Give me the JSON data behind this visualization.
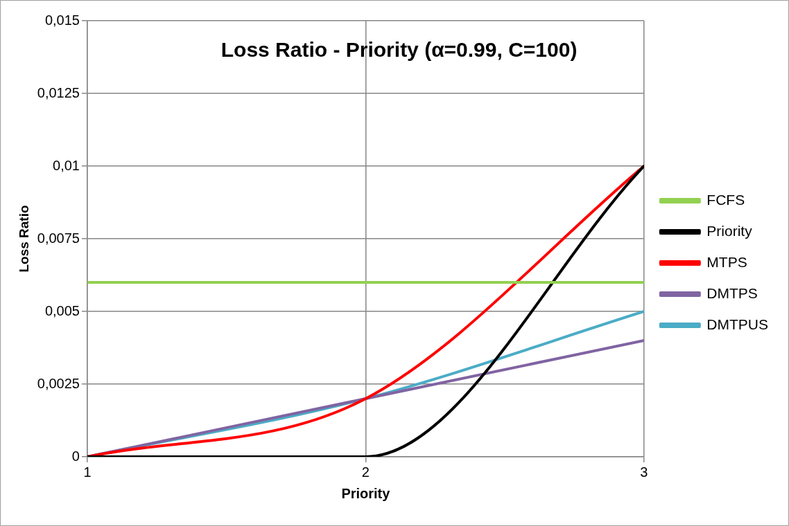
{
  "chart_data": {
    "type": "line",
    "title": "Loss Ratio - Priority (α=0.99, C=100)",
    "xlabel": "Priority",
    "ylabel": "Loss Ratio",
    "x": [
      1,
      2,
      3
    ],
    "xlim": [
      1,
      3
    ],
    "xticks": [
      1,
      2,
      3
    ],
    "ylim": [
      0,
      0.015
    ],
    "yticks": [
      {
        "value": 0,
        "label": "0"
      },
      {
        "value": 0.0025,
        "label": "0,0025"
      },
      {
        "value": 0.005,
        "label": "0,005"
      },
      {
        "value": 0.0075,
        "label": "0,0075"
      },
      {
        "value": 0.01,
        "label": "0,01"
      },
      {
        "value": 0.0125,
        "label": "0,0125"
      },
      {
        "value": 0.015,
        "label": "0,015"
      }
    ],
    "grid": true,
    "legend": "right",
    "marker": "none",
    "line_style": "solid",
    "series": [
      {
        "name": "FCFS",
        "color": "#92d050",
        "values": [
          0.006,
          0.006,
          0.006
        ]
      },
      {
        "name": "Priority",
        "color": "#000000",
        "values": [
          0,
          0,
          0.01
        ]
      },
      {
        "name": "MTPS",
        "color": "#ff0000",
        "values": [
          0,
          0.002,
          0.01
        ]
      },
      {
        "name": "DMTPS",
        "color": "#8064a2",
        "values": [
          0,
          0.002,
          0.004
        ]
      },
      {
        "name": "DMTPUS",
        "color": "#4bacc6",
        "values": [
          0,
          0.002,
          0.005
        ]
      }
    ]
  }
}
